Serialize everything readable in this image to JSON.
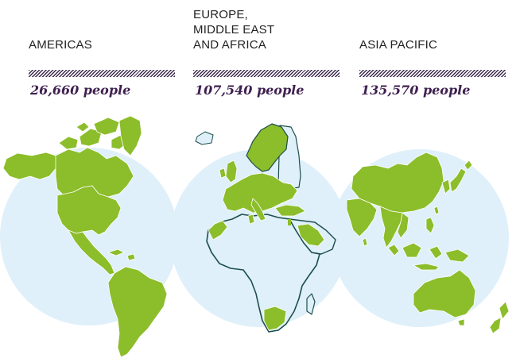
{
  "regions": [
    {
      "name": "AMERICAS",
      "people": "26,660 people"
    },
    {
      "name": "EUROPE,\nMIDDLE EAST\nAND AFRICA",
      "people": "107,540 people"
    },
    {
      "name": "ASIA PACIFIC",
      "people": "135,570 people"
    }
  ],
  "colors": {
    "land": "#8cbd2a",
    "land_outline": "#1d4f4a",
    "circle": "#dff0fa",
    "hatch": "#3d2a4f",
    "people_text": "#3d1f4e",
    "title_text": "#222222"
  }
}
